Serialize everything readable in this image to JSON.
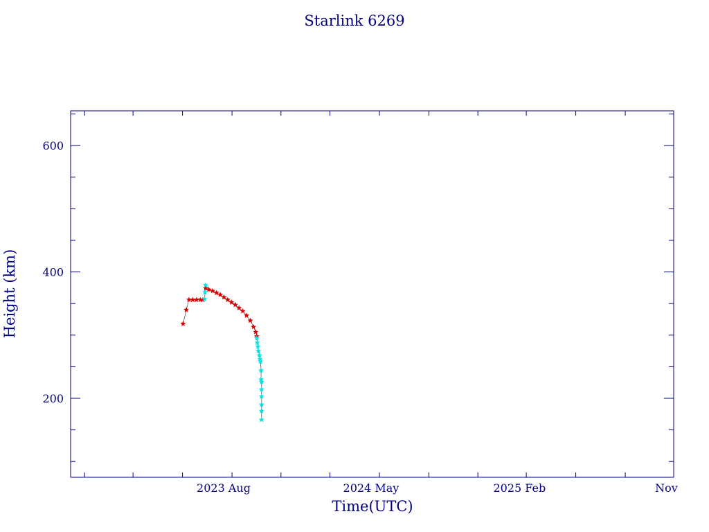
{
  "chart_data": {
    "type": "scatter",
    "title": "Starlink 6269",
    "xlabel": "Time(UTC)",
    "ylabel": "Height (km)",
    "x_tick_labels": [
      "2023 Aug",
      "2024 May",
      "2025 Feb",
      "Nov"
    ],
    "x_tick_dates": [
      "2023-08-01",
      "2024-05-01",
      "2025-02-01",
      "2025-11-01"
    ],
    "xlim": [
      "2022-11-05",
      "2025-11-30"
    ],
    "y_tick_labels": [
      "200",
      "400",
      "600"
    ],
    "y_ticks": [
      200,
      400,
      600
    ],
    "ylim": [
      75,
      655
    ],
    "grid": false,
    "series": [
      {
        "color": "#dd0000",
        "points": [
          [
            "2023-06-02",
            318
          ],
          [
            "2023-06-08",
            340
          ],
          [
            "2023-06-13",
            356
          ],
          [
            "2023-06-20",
            356
          ],
          [
            "2023-06-27",
            356
          ],
          [
            "2023-07-04",
            356
          ],
          [
            "2023-07-09",
            356
          ],
          [
            "2023-07-14",
            374
          ],
          [
            "2023-07-20",
            372
          ],
          [
            "2023-07-27",
            370
          ],
          [
            "2023-08-03",
            367
          ],
          [
            "2023-08-10",
            364
          ],
          [
            "2023-08-17",
            360
          ],
          [
            "2023-08-24",
            356
          ],
          [
            "2023-08-31",
            352
          ],
          [
            "2023-09-07",
            348
          ],
          [
            "2023-09-14",
            343
          ],
          [
            "2023-09-21",
            338
          ],
          [
            "2023-09-28",
            331
          ],
          [
            "2023-10-05",
            323
          ],
          [
            "2023-10-11",
            313
          ],
          [
            "2023-10-15",
            305
          ],
          [
            "2023-10-17",
            298
          ]
        ]
      },
      {
        "color": "#00e5e5",
        "points": [
          [
            "2023-07-12",
            357
          ],
          [
            "2023-07-13",
            368
          ],
          [
            "2023-07-14",
            379
          ],
          [
            "2023-10-17",
            295
          ],
          [
            "2023-10-18",
            288
          ],
          [
            "2023-10-19",
            282
          ],
          [
            "2023-10-20",
            275
          ],
          [
            "2023-10-22",
            268
          ],
          [
            "2023-10-23",
            262
          ],
          [
            "2023-10-24",
            258
          ],
          [
            "2023-10-25",
            244
          ],
          [
            "2023-10-25",
            230
          ],
          [
            "2023-10-26",
            226
          ],
          [
            "2023-10-26",
            214
          ],
          [
            "2023-10-26",
            203
          ],
          [
            "2023-10-26",
            190
          ],
          [
            "2023-10-26",
            180
          ],
          [
            "2023-10-26",
            166
          ]
        ]
      }
    ]
  }
}
